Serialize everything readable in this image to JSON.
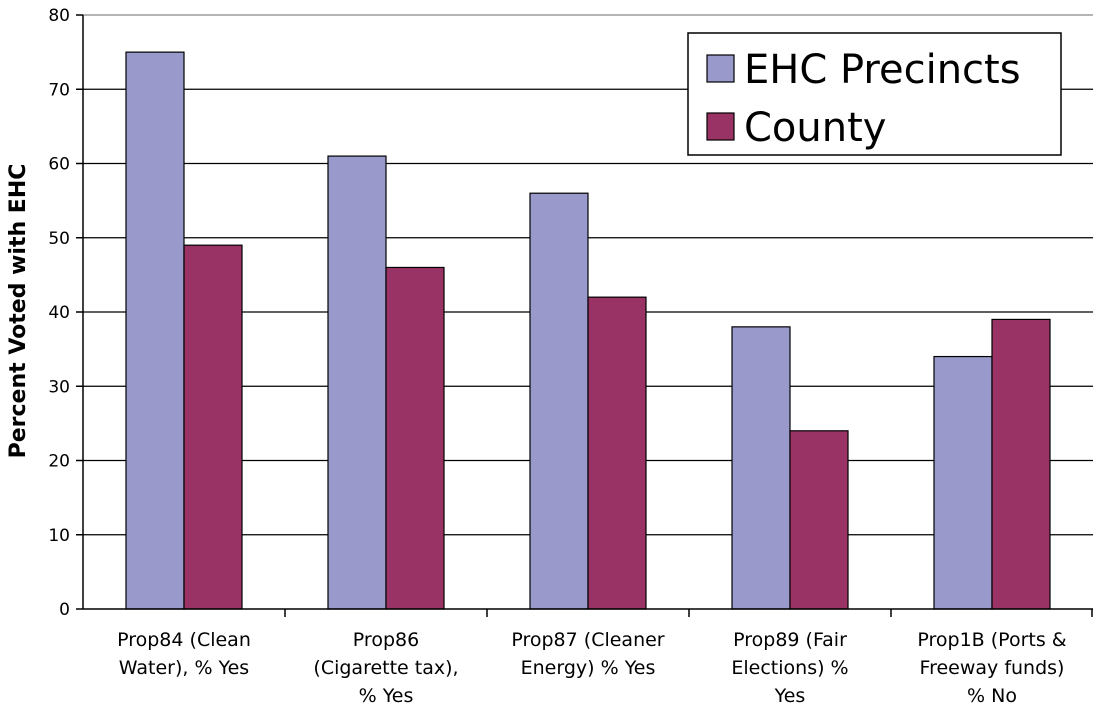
{
  "chart_data": {
    "type": "bar",
    "title": "",
    "xlabel": "",
    "ylabel": "Percent Voted with EHC",
    "ylim": [
      0,
      80
    ],
    "yticks": [
      "0",
      "10",
      "20",
      "30",
      "40",
      "50",
      "60",
      "70",
      "80"
    ],
    "grid": true,
    "legend_position": "top-right",
    "categories": [
      [
        "Prop84 (Clean",
        "Water), % Yes"
      ],
      [
        "Prop86",
        "(Cigarette tax),",
        "% Yes"
      ],
      [
        "Prop87 (Cleaner",
        "Energy) % Yes"
      ],
      [
        "Prop89 (Fair",
        "Elections) %",
        "Yes"
      ],
      [
        "Prop1B (Ports &",
        "Freeway funds)",
        "% No"
      ]
    ],
    "series": [
      {
        "name": "EHC Precincts",
        "color": "#9999cc",
        "values": [
          75,
          61,
          56,
          38,
          34
        ]
      },
      {
        "name": "County",
        "color": "#993366",
        "values": [
          49,
          46,
          42,
          24,
          39
        ]
      }
    ]
  }
}
